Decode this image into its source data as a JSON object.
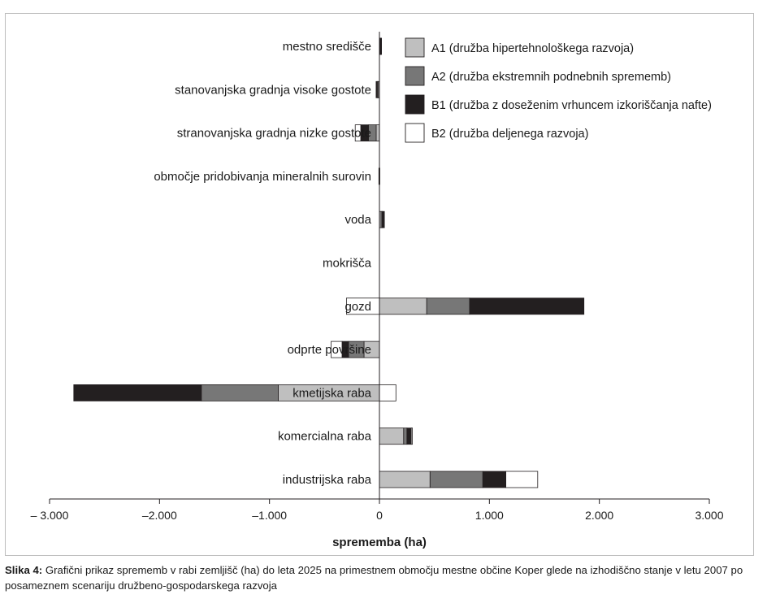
{
  "chart_data": {
    "type": "bar",
    "orientation": "horizontal",
    "stacking": "diverging",
    "categories": [
      "mestno središče",
      "stanovanjska gradnja visoke gostote",
      "stranovanjska gradnja nizke gostote",
      "območje pridobivanja mineralnih surovin",
      "voda",
      "mokrišča",
      "gozd",
      "odprte površine",
      "kmetijska raba",
      "komercialna raba",
      "industrijska raba"
    ],
    "series": [
      {
        "name": "A1 (družba hipertehnološkega razvoja)",
        "color": "#bfbfbf",
        "values": [
          5,
          -10,
          -30,
          0,
          15,
          0,
          430,
          -140,
          -920,
          220,
          460
        ]
      },
      {
        "name": "A2 (družba ekstremnih podnebnih sprememb)",
        "color": "#777777",
        "values": [
          5,
          -10,
          -70,
          0,
          10,
          0,
          390,
          -140,
          -700,
          30,
          480
        ]
      },
      {
        "name": "B1 (družba z doseženim vrhuncem izkoriščanja nafte)",
        "color": "#231f20",
        "values": [
          5,
          -10,
          -70,
          -5,
          20,
          0,
          1040,
          -60,
          -1160,
          40,
          210
        ]
      },
      {
        "name": "B2 (družba deljenega razvoja)",
        "color": "#ffffff",
        "values": [
          0,
          0,
          -50,
          0,
          0,
          0,
          -300,
          -100,
          150,
          10,
          290
        ]
      }
    ],
    "xlim": [
      -3000,
      3000
    ],
    "xticks": [
      -3000,
      -2000,
      -1000,
      0,
      1000,
      2000,
      3000
    ],
    "xtick_labels": [
      "– 3.000",
      "–2.000",
      "–1.000",
      "0",
      "1.000",
      "2.000",
      "3.000"
    ],
    "xlabel": "sprememba (ha)",
    "ylabel": "",
    "title": "",
    "legend_position": "top-right",
    "grid": false
  },
  "caption": {
    "prefix": "Slika 4:",
    "text": " Grafični prikaz sprememb v rabi zemljišč (ha) do leta 2025 na primestnem območju mestne občine Koper glede na izhodiščno stanje v letu 2007 po posameznem scenariju družbeno-gospodarskega razvoja"
  }
}
